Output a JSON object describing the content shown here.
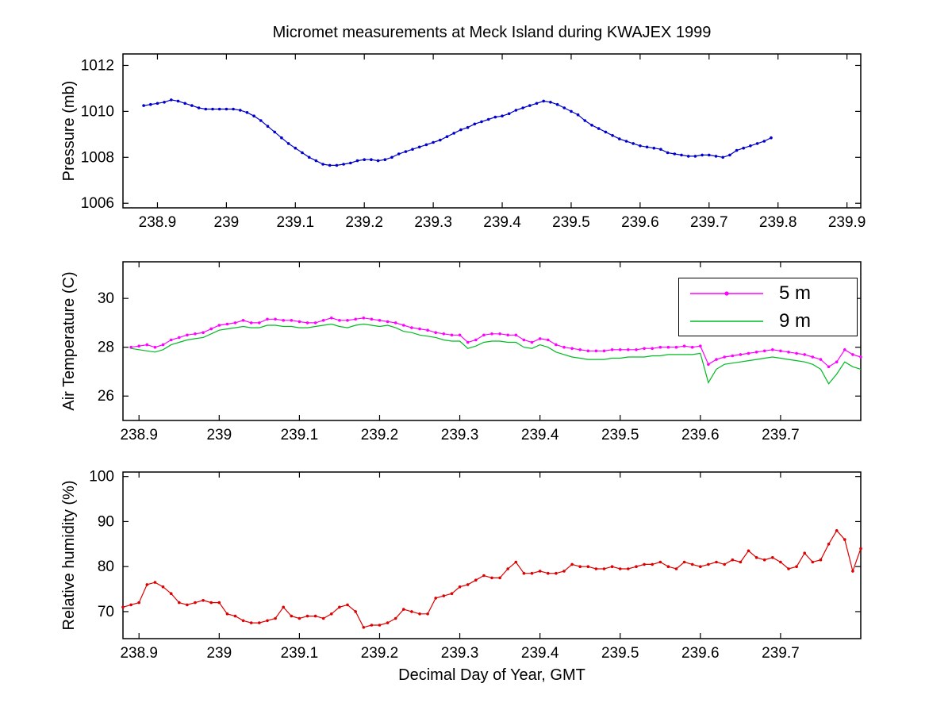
{
  "figure": {
    "title": "Micromet measurements at Meck Island during KWAJEX 1999",
    "background": "#ffffff"
  },
  "chart_data": [
    {
      "name": "pressure",
      "type": "line",
      "title": "",
      "xlabel": "",
      "ylabel": "Pressure (mb)",
      "grid": false,
      "xlim": [
        238.85,
        239.92
      ],
      "ylim": [
        1005.8,
        1012.5
      ],
      "xticks": [
        238.9,
        239,
        239.1,
        239.2,
        239.3,
        239.4,
        239.5,
        239.6,
        239.7,
        239.8,
        239.9
      ],
      "xtick_labels": [
        "238.9",
        "239",
        "239.1",
        "239.2",
        "239.3",
        "239.4",
        "239.5",
        "239.6",
        "239.7",
        "239.8",
        "239.9"
      ],
      "yticks": [
        1006,
        1008,
        1010,
        1012
      ],
      "ytick_labels": [
        "1006",
        "1008",
        "1010",
        "1012"
      ],
      "series": [
        {
          "name": "pressure",
          "color": "#0000cc",
          "marker": "dot",
          "x": [
            238.88,
            238.89,
            238.9,
            238.91,
            238.92,
            238.93,
            238.94,
            238.95,
            238.96,
            238.97,
            238.98,
            238.99,
            239,
            239.01,
            239.02,
            239.03,
            239.04,
            239.05,
            239.06,
            239.07,
            239.08,
            239.09,
            239.1,
            239.11,
            239.12,
            239.13,
            239.14,
            239.15,
            239.16,
            239.17,
            239.18,
            239.19,
            239.2,
            239.21,
            239.22,
            239.23,
            239.24,
            239.25,
            239.26,
            239.27,
            239.28,
            239.29,
            239.3,
            239.31,
            239.32,
            239.33,
            239.34,
            239.35,
            239.36,
            239.37,
            239.38,
            239.39,
            239.4,
            239.41,
            239.42,
            239.43,
            239.44,
            239.45,
            239.46,
            239.47,
            239.48,
            239.49,
            239.5,
            239.51,
            239.52,
            239.53,
            239.54,
            239.55,
            239.56,
            239.57,
            239.58,
            239.59,
            239.6,
            239.61,
            239.62,
            239.63,
            239.64,
            239.65,
            239.66,
            239.67,
            239.68,
            239.69,
            239.7,
            239.71,
            239.72,
            239.73,
            239.74,
            239.75,
            239.76,
            239.77,
            239.78,
            239.79
          ],
          "y": [
            1010.25,
            1010.3,
            1010.35,
            1010.4,
            1010.5,
            1010.45,
            1010.35,
            1010.25,
            1010.15,
            1010.1,
            1010.1,
            1010.1,
            1010.1,
            1010.1,
            1010.05,
            1009.95,
            1009.8,
            1009.6,
            1009.35,
            1009.1,
            1008.85,
            1008.6,
            1008.4,
            1008.2,
            1008,
            1007.85,
            1007.7,
            1007.65,
            1007.65,
            1007.7,
            1007.75,
            1007.85,
            1007.9,
            1007.9,
            1007.85,
            1007.9,
            1008,
            1008.15,
            1008.25,
            1008.35,
            1008.45,
            1008.55,
            1008.65,
            1008.75,
            1008.9,
            1009.05,
            1009.2,
            1009.3,
            1009.45,
            1009.55,
            1009.65,
            1009.75,
            1009.8,
            1009.9,
            1010.05,
            1010.15,
            1010.25,
            1010.35,
            1010.45,
            1010.4,
            1010.3,
            1010.15,
            1010,
            1009.85,
            1009.6,
            1009.4,
            1009.25,
            1009.1,
            1008.95,
            1008.8,
            1008.7,
            1008.6,
            1008.5,
            1008.45,
            1008.4,
            1008.35,
            1008.2,
            1008.15,
            1008.1,
            1008.05,
            1008.05,
            1008.1,
            1008.1,
            1008.05,
            1008,
            1008.1,
            1008.3,
            1008.4,
            1008.5,
            1008.6,
            1008.7,
            1008.85
          ]
        }
      ]
    },
    {
      "name": "air-temperature",
      "type": "line",
      "title": "",
      "xlabel": "",
      "ylabel": "Air Temperature (C)",
      "grid": false,
      "legend": {
        "position": "top-right",
        "entries": [
          "5 m",
          "9 m"
        ]
      },
      "xlim": [
        238.88,
        239.8
      ],
      "ylim": [
        25,
        31.5
      ],
      "xticks": [
        238.9,
        239,
        239.1,
        239.2,
        239.3,
        239.4,
        239.5,
        239.6,
        239.7
      ],
      "xtick_labels": [
        "238.9",
        "239",
        "239.1",
        "239.2",
        "239.3",
        "239.4",
        "239.5",
        "239.6",
        "239.7"
      ],
      "yticks": [
        26,
        28,
        30
      ],
      "ytick_labels": [
        "26",
        "28",
        "30"
      ],
      "series": [
        {
          "name": "5 m",
          "color": "#ff00ff",
          "marker": "dot",
          "x": [
            238.89,
            238.9,
            238.91,
            238.92,
            238.93,
            238.94,
            238.95,
            238.96,
            238.97,
            238.98,
            238.99,
            239,
            239.01,
            239.02,
            239.03,
            239.04,
            239.05,
            239.06,
            239.07,
            239.08,
            239.09,
            239.1,
            239.11,
            239.12,
            239.13,
            239.14,
            239.15,
            239.16,
            239.17,
            239.18,
            239.19,
            239.2,
            239.21,
            239.22,
            239.23,
            239.24,
            239.25,
            239.26,
            239.27,
            239.28,
            239.29,
            239.3,
            239.31,
            239.32,
            239.33,
            239.34,
            239.35,
            239.36,
            239.37,
            239.38,
            239.39,
            239.4,
            239.41,
            239.42,
            239.43,
            239.44,
            239.45,
            239.46,
            239.47,
            239.48,
            239.49,
            239.5,
            239.51,
            239.52,
            239.53,
            239.54,
            239.55,
            239.56,
            239.57,
            239.58,
            239.59,
            239.6,
            239.61,
            239.62,
            239.63,
            239.64,
            239.65,
            239.66,
            239.67,
            239.68,
            239.69,
            239.7,
            239.71,
            239.72,
            239.73,
            239.74,
            239.75,
            239.76,
            239.77,
            239.78,
            239.79,
            239.8
          ],
          "y": [
            28,
            28.05,
            28.1,
            28,
            28.1,
            28.3,
            28.4,
            28.5,
            28.55,
            28.6,
            28.75,
            28.9,
            28.95,
            29,
            29.1,
            29,
            29,
            29.15,
            29.15,
            29.1,
            29.1,
            29.05,
            29,
            29,
            29.1,
            29.2,
            29.1,
            29.1,
            29.15,
            29.2,
            29.15,
            29.1,
            29.05,
            29,
            28.9,
            28.8,
            28.75,
            28.7,
            28.6,
            28.55,
            28.5,
            28.5,
            28.2,
            28.3,
            28.5,
            28.55,
            28.55,
            28.5,
            28.5,
            28.3,
            28.2,
            28.35,
            28.3,
            28.1,
            28,
            27.95,
            27.9,
            27.85,
            27.85,
            27.85,
            27.9,
            27.9,
            27.9,
            27.9,
            27.95,
            27.95,
            28,
            28,
            28,
            28.05,
            28,
            28.05,
            27.3,
            27.5,
            27.6,
            27.65,
            27.7,
            27.75,
            27.8,
            27.85,
            27.9,
            27.85,
            27.8,
            27.75,
            27.7,
            27.6,
            27.5,
            27.2,
            27.4,
            27.9,
            27.7,
            27.6
          ]
        },
        {
          "name": "9 m",
          "color": "#00bb22",
          "marker": "none",
          "x": [
            238.89,
            238.9,
            238.91,
            238.92,
            238.93,
            238.94,
            238.95,
            238.96,
            238.97,
            238.98,
            238.99,
            239,
            239.01,
            239.02,
            239.03,
            239.04,
            239.05,
            239.06,
            239.07,
            239.08,
            239.09,
            239.1,
            239.11,
            239.12,
            239.13,
            239.14,
            239.15,
            239.16,
            239.17,
            239.18,
            239.19,
            239.2,
            239.21,
            239.22,
            239.23,
            239.24,
            239.25,
            239.26,
            239.27,
            239.28,
            239.29,
            239.3,
            239.31,
            239.32,
            239.33,
            239.34,
            239.35,
            239.36,
            239.37,
            239.38,
            239.39,
            239.4,
            239.41,
            239.42,
            239.43,
            239.44,
            239.45,
            239.46,
            239.47,
            239.48,
            239.49,
            239.5,
            239.51,
            239.52,
            239.53,
            239.54,
            239.55,
            239.56,
            239.57,
            239.58,
            239.59,
            239.6,
            239.61,
            239.62,
            239.63,
            239.64,
            239.65,
            239.66,
            239.67,
            239.68,
            239.69,
            239.7,
            239.71,
            239.72,
            239.73,
            239.74,
            239.75,
            239.76,
            239.77,
            239.78,
            239.79,
            239.8
          ],
          "y": [
            27.95,
            27.9,
            27.85,
            27.8,
            27.9,
            28.1,
            28.2,
            28.3,
            28.35,
            28.4,
            28.55,
            28.7,
            28.75,
            28.8,
            28.85,
            28.8,
            28.8,
            28.9,
            28.9,
            28.85,
            28.85,
            28.8,
            28.8,
            28.85,
            28.9,
            28.95,
            28.85,
            28.8,
            28.9,
            28.95,
            28.9,
            28.85,
            28.9,
            28.8,
            28.65,
            28.6,
            28.5,
            28.45,
            28.4,
            28.3,
            28.25,
            28.25,
            27.95,
            28.05,
            28.2,
            28.25,
            28.25,
            28.2,
            28.2,
            28,
            27.95,
            28.1,
            28,
            27.8,
            27.7,
            27.6,
            27.55,
            27.5,
            27.5,
            27.5,
            27.55,
            27.55,
            27.6,
            27.6,
            27.6,
            27.65,
            27.65,
            27.7,
            27.7,
            27.7,
            27.7,
            27.75,
            26.55,
            27.1,
            27.3,
            27.35,
            27.4,
            27.45,
            27.5,
            27.55,
            27.6,
            27.55,
            27.5,
            27.45,
            27.4,
            27.3,
            27.1,
            26.5,
            26.9,
            27.4,
            27.2,
            27.1
          ]
        }
      ]
    },
    {
      "name": "relative-humidity",
      "type": "line",
      "title": "",
      "xlabel": "Decimal Day of Year, GMT",
      "ylabel": "Relative humidity (%)",
      "grid": false,
      "xlim": [
        238.88,
        239.8
      ],
      "ylim": [
        64,
        101
      ],
      "xticks": [
        238.9,
        239,
        239.1,
        239.2,
        239.3,
        239.4,
        239.5,
        239.6,
        239.7
      ],
      "xtick_labels": [
        "238.9",
        "239",
        "239.1",
        "239.2",
        "239.3",
        "239.4",
        "239.5",
        "239.6",
        "239.7"
      ],
      "yticks": [
        70,
        80,
        90,
        100
      ],
      "ytick_labels": [
        "70",
        "80",
        "90",
        "100"
      ],
      "series": [
        {
          "name": "relative-humidity",
          "color": "#dd0000",
          "marker": "dot",
          "x": [
            238.88,
            238.89,
            238.9,
            238.91,
            238.92,
            238.93,
            238.94,
            238.95,
            238.96,
            238.97,
            238.98,
            238.99,
            239,
            239.01,
            239.02,
            239.03,
            239.04,
            239.05,
            239.06,
            239.07,
            239.08,
            239.09,
            239.1,
            239.11,
            239.12,
            239.13,
            239.14,
            239.15,
            239.16,
            239.17,
            239.18,
            239.19,
            239.2,
            239.21,
            239.22,
            239.23,
            239.24,
            239.25,
            239.26,
            239.27,
            239.28,
            239.29,
            239.3,
            239.31,
            239.32,
            239.33,
            239.34,
            239.35,
            239.36,
            239.37,
            239.38,
            239.39,
            239.4,
            239.41,
            239.42,
            239.43,
            239.44,
            239.45,
            239.46,
            239.47,
            239.48,
            239.49,
            239.5,
            239.51,
            239.52,
            239.53,
            239.54,
            239.55,
            239.56,
            239.57,
            239.58,
            239.59,
            239.6,
            239.61,
            239.62,
            239.63,
            239.64,
            239.65,
            239.66,
            239.67,
            239.68,
            239.69,
            239.7,
            239.71,
            239.72,
            239.73,
            239.74,
            239.75,
            239.76,
            239.77,
            239.78,
            239.79,
            239.8
          ],
          "y": [
            71,
            71.5,
            72,
            76,
            76.5,
            75.5,
            74,
            72,
            71.5,
            72,
            72.5,
            72,
            72,
            69.5,
            69,
            68,
            67.5,
            67.5,
            68,
            68.5,
            71,
            69,
            68.5,
            69,
            69,
            68.5,
            69.5,
            71,
            71.5,
            70,
            66.5,
            67,
            67,
            67.5,
            68.5,
            70.5,
            70,
            69.5,
            69.5,
            73,
            73.5,
            74,
            75.5,
            76,
            77,
            78,
            77.5,
            77.5,
            79.5,
            81,
            78.5,
            78.5,
            79,
            78.5,
            78.5,
            79,
            80.5,
            80,
            80,
            79.5,
            79.5,
            80,
            79.5,
            79.5,
            80,
            80.5,
            80.5,
            81,
            80,
            79.5,
            81,
            80.5,
            80,
            80.5,
            81,
            80.5,
            81.5,
            81,
            83.5,
            82,
            81.5,
            82,
            81,
            79.5,
            80,
            83,
            81,
            81.5,
            85,
            88,
            86,
            79,
            84
          ]
        }
      ]
    }
  ]
}
